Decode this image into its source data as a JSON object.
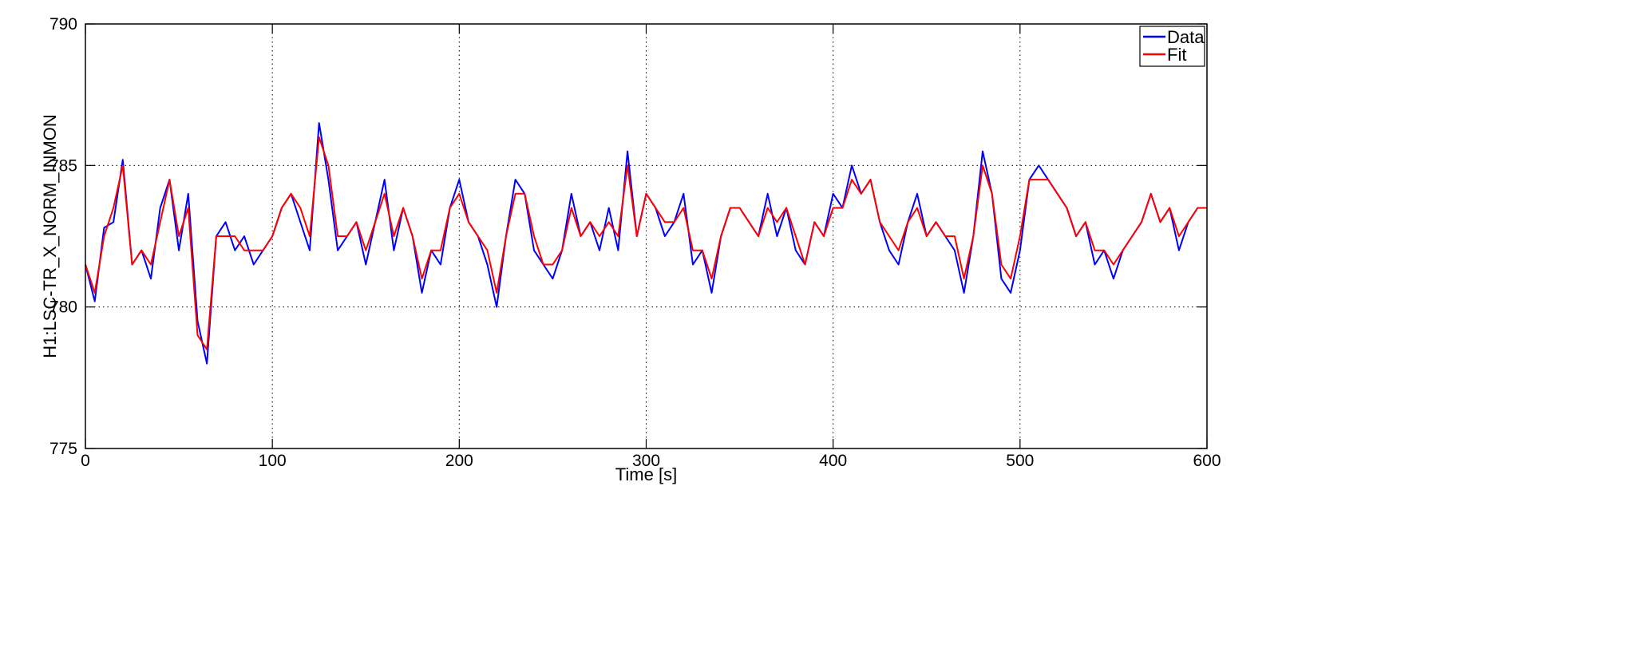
{
  "chart_data": {
    "type": "line",
    "title": "",
    "xlabel": "Time [s]",
    "ylabel": "H1:LSC-TR_X_NORM_INMON",
    "xlim": [
      0,
      600
    ],
    "ylim": [
      775,
      790
    ],
    "xticks": [
      0,
      100,
      200,
      300,
      400,
      500,
      600
    ],
    "yticks": [
      775,
      780,
      785,
      790
    ],
    "xtick_labels": [
      "0",
      "100",
      "200",
      "300",
      "400",
      "500",
      "600"
    ],
    "ytick_labels": [
      "775",
      "780",
      "785",
      "790"
    ],
    "grid": true,
    "legend_position": "top-right",
    "colors": {
      "Data": "#0000ff",
      "Fit": "#ff0000",
      "axis": "#000000",
      "grid": "#000000"
    },
    "series": [
      {
        "name": "Data",
        "color": "#0000ff",
        "x": [
          0,
          5,
          10,
          15,
          20,
          25,
          30,
          35,
          40,
          45,
          50,
          55,
          60,
          65,
          70,
          75,
          80,
          85,
          90,
          95,
          100,
          105,
          110,
          115,
          120,
          125,
          130,
          135,
          140,
          145,
          150,
          155,
          160,
          165,
          170,
          175,
          180,
          185,
          190,
          195,
          200,
          205,
          210,
          215,
          220,
          225,
          230,
          235,
          240,
          245,
          250,
          255,
          260,
          265,
          270,
          275,
          280,
          285,
          290,
          295,
          300,
          305,
          310,
          315,
          320,
          325,
          330,
          335,
          340,
          345,
          350,
          355,
          360,
          365,
          370,
          375,
          380,
          385,
          390,
          395,
          400,
          405,
          410,
          415,
          420,
          425,
          430,
          435,
          440,
          445,
          450,
          455,
          460,
          465,
          470,
          475,
          480,
          485,
          490,
          495,
          500,
          505,
          510,
          515,
          520,
          525,
          530,
          535,
          540,
          545,
          550,
          555,
          560,
          565,
          570,
          575,
          580,
          585,
          590,
          595,
          600
        ],
        "y": [
          781.5,
          780.2,
          782.8,
          783.0,
          785.2,
          781.5,
          782.0,
          781.0,
          783.5,
          784.5,
          782.0,
          784.0,
          779.5,
          778.0,
          782.5,
          783.0,
          782.0,
          782.5,
          781.5,
          782.0,
          782.5,
          783.5,
          784.0,
          783.0,
          782.0,
          786.5,
          784.5,
          782.0,
          782.5,
          783.0,
          781.5,
          783.0,
          784.5,
          782.0,
          783.5,
          782.5,
          780.5,
          782.0,
          781.5,
          783.5,
          784.5,
          783.0,
          782.5,
          781.5,
          780.0,
          782.5,
          784.5,
          784.0,
          782.0,
          781.5,
          781.0,
          782.0,
          784.0,
          782.5,
          783.0,
          782.0,
          783.5,
          782.0,
          785.5,
          782.5,
          784.0,
          783.5,
          782.5,
          783.0,
          784.0,
          781.5,
          782.0,
          780.5,
          782.5,
          783.5,
          783.5,
          783.0,
          782.5,
          784.0,
          782.5,
          783.5,
          782.0,
          781.5,
          783.0,
          782.5,
          784.0,
          783.5,
          785.0,
          784.0,
          784.5,
          783.0,
          782.0,
          781.5,
          783.0,
          784.0,
          782.5,
          783.0,
          782.5,
          782.0,
          780.5,
          782.5,
          785.5,
          784.0,
          781.0,
          780.5,
          782.0,
          784.5,
          785.0,
          784.5,
          784.0,
          783.5,
          782.5,
          783.0,
          781.5,
          782.0,
          781.0,
          782.0,
          782.5,
          783.0,
          784.0,
          783.0,
          783.5,
          782.0,
          783.0,
          783.5,
          783.5
        ]
      },
      {
        "name": "Fit",
        "color": "#ff0000",
        "x": [
          0,
          5,
          10,
          15,
          20,
          25,
          30,
          35,
          40,
          45,
          50,
          55,
          60,
          65,
          70,
          75,
          80,
          85,
          90,
          95,
          100,
          105,
          110,
          115,
          120,
          125,
          130,
          135,
          140,
          145,
          150,
          155,
          160,
          165,
          170,
          175,
          180,
          185,
          190,
          195,
          200,
          205,
          210,
          215,
          220,
          225,
          230,
          235,
          240,
          245,
          250,
          255,
          260,
          265,
          270,
          275,
          280,
          285,
          290,
          295,
          300,
          305,
          310,
          315,
          320,
          325,
          330,
          335,
          340,
          345,
          350,
          355,
          360,
          365,
          370,
          375,
          380,
          385,
          390,
          395,
          400,
          405,
          410,
          415,
          420,
          425,
          430,
          435,
          440,
          445,
          450,
          455,
          460,
          465,
          470,
          475,
          480,
          485,
          490,
          495,
          500,
          505,
          510,
          515,
          520,
          525,
          530,
          535,
          540,
          545,
          550,
          555,
          560,
          565,
          570,
          575,
          580,
          585,
          590,
          595,
          600
        ],
        "y": [
          781.5,
          780.5,
          782.5,
          783.5,
          785.0,
          781.5,
          782.0,
          781.5,
          783.0,
          784.5,
          782.5,
          783.5,
          779.0,
          778.5,
          782.5,
          782.5,
          782.5,
          782.0,
          782.0,
          782.0,
          782.5,
          783.5,
          784.0,
          783.5,
          782.5,
          786.0,
          785.0,
          782.5,
          782.5,
          783.0,
          782.0,
          783.0,
          784.0,
          782.5,
          783.5,
          782.5,
          781.0,
          782.0,
          782.0,
          783.5,
          784.0,
          783.0,
          782.5,
          782.0,
          780.5,
          782.5,
          784.0,
          784.0,
          782.5,
          781.5,
          781.5,
          782.0,
          783.5,
          782.5,
          783.0,
          782.5,
          783.0,
          782.5,
          785.0,
          782.5,
          784.0,
          783.5,
          783.0,
          783.0,
          783.5,
          782.0,
          782.0,
          781.0,
          782.5,
          783.5,
          783.5,
          783.0,
          782.5,
          783.5,
          783.0,
          783.5,
          782.5,
          781.5,
          783.0,
          782.5,
          783.5,
          783.5,
          784.5,
          784.0,
          784.5,
          783.0,
          782.5,
          782.0,
          783.0,
          783.5,
          782.5,
          783.0,
          782.5,
          782.5,
          781.0,
          782.5,
          785.0,
          784.0,
          781.5,
          781.0,
          782.5,
          784.5,
          784.5,
          784.5,
          784.0,
          783.5,
          782.5,
          783.0,
          782.0,
          782.0,
          781.5,
          782.0,
          782.5,
          783.0,
          784.0,
          783.0,
          783.5,
          782.5,
          783.0,
          783.5,
          783.5
        ]
      }
    ]
  }
}
